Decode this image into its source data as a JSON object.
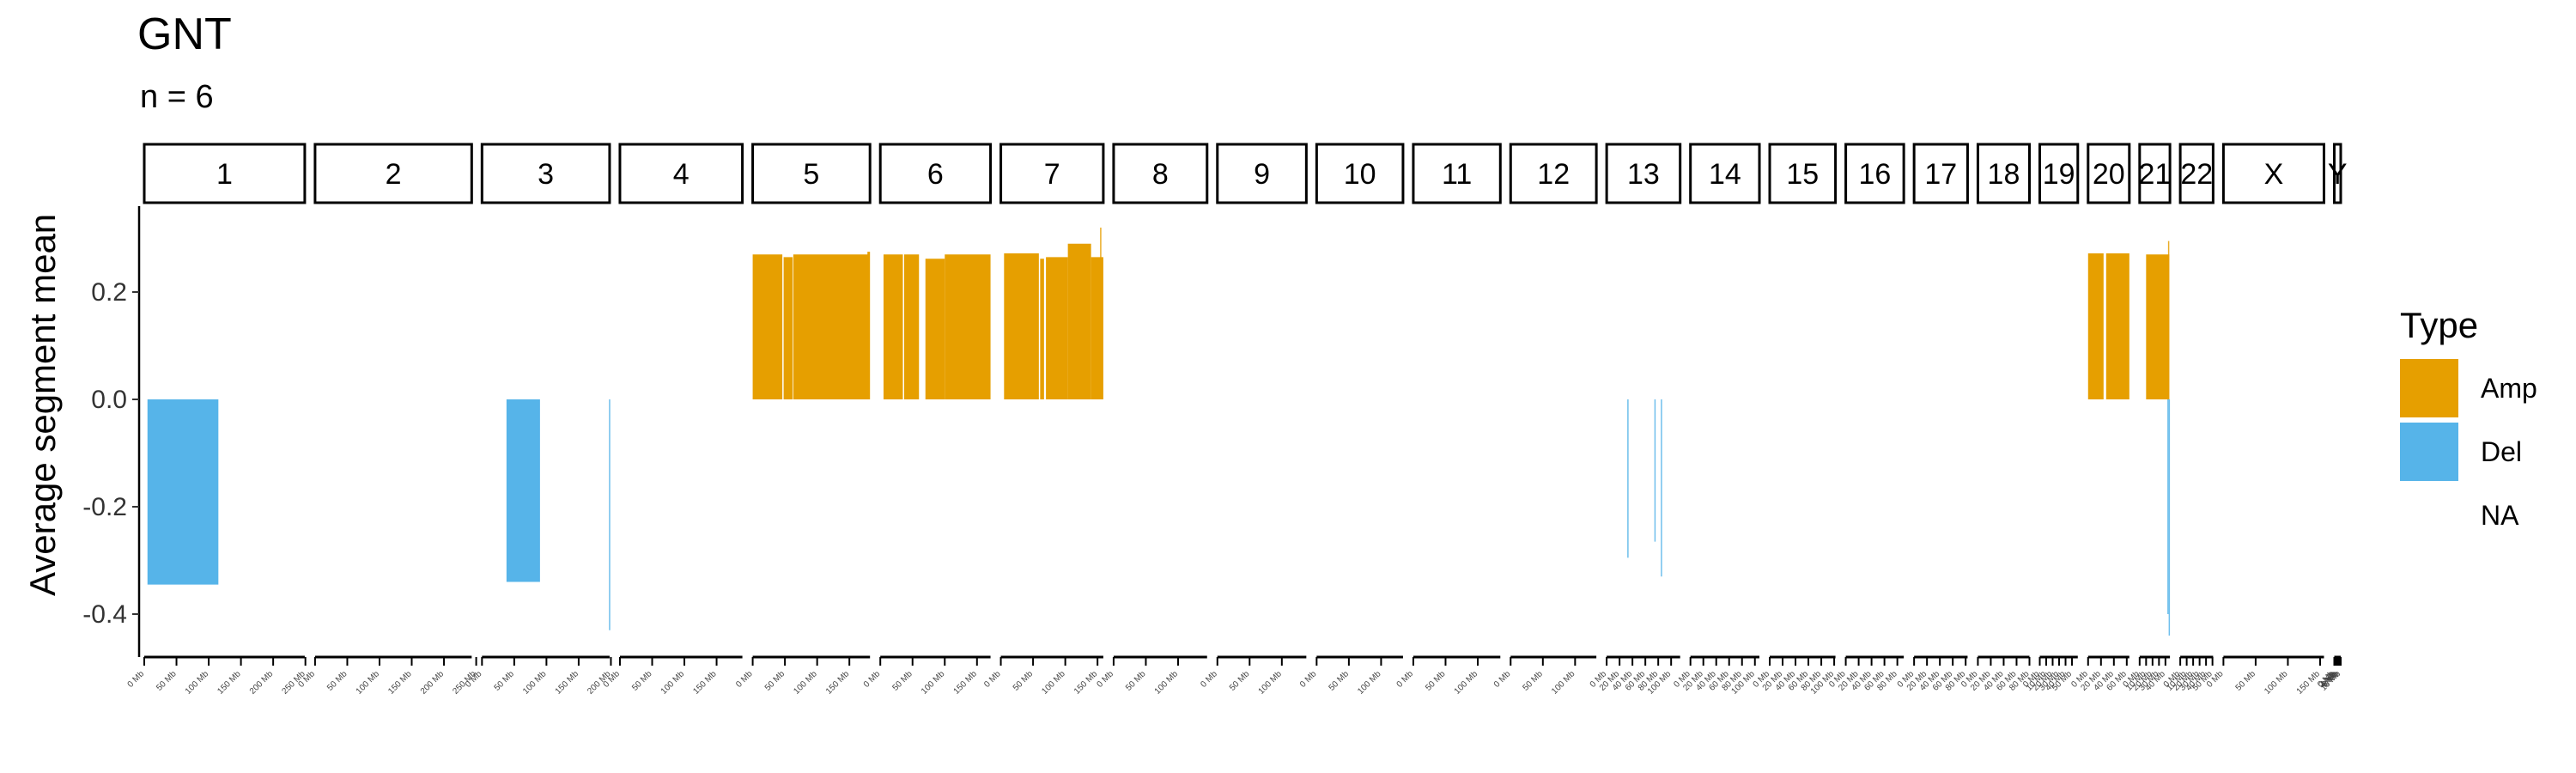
{
  "chart_data": {
    "type": "bar",
    "title": "GNT",
    "subtitle": "n = 6",
    "ylabel": "Average segment mean",
    "xlabel": "",
    "ylim": [
      -0.48,
      0.36
    ],
    "yticks": [
      0.2,
      0.0,
      -0.2,
      -0.4
    ],
    "ytick_labels": [
      "0.2",
      "0.0",
      "-0.2",
      "-0.4"
    ],
    "legend": {
      "title": "Type",
      "position": "right",
      "entries": [
        {
          "label": "Amp",
          "color": "#E69F00"
        },
        {
          "label": "Del",
          "color": "#56B4E9"
        },
        {
          "label": "NA",
          "color": "none"
        }
      ]
    },
    "chromosomes": [
      {
        "name": "1",
        "length_mb": 249,
        "ticks": [
          "0 Mb",
          "50 Mb",
          "100 Mb",
          "150 Mb",
          "200 Mb",
          "250 Mb"
        ]
      },
      {
        "name": "2",
        "length_mb": 243,
        "ticks": [
          "0 Mb",
          "50 Mb",
          "100 Mb",
          "150 Mb",
          "200 Mb",
          "250 Mb"
        ]
      },
      {
        "name": "3",
        "length_mb": 198,
        "ticks": [
          "0 Mb",
          "50 Mb",
          "100 Mb",
          "150 Mb",
          "200 Mb"
        ]
      },
      {
        "name": "4",
        "length_mb": 190,
        "ticks": [
          "0 Mb",
          "50 Mb",
          "100 Mb",
          "150 Mb"
        ]
      },
      {
        "name": "5",
        "length_mb": 182,
        "ticks": [
          "0 Mb",
          "50 Mb",
          "100 Mb",
          "150 Mb"
        ]
      },
      {
        "name": "6",
        "length_mb": 171,
        "ticks": [
          "0 Mb",
          "50 Mb",
          "100 Mb",
          "150 Mb"
        ]
      },
      {
        "name": "7",
        "length_mb": 159,
        "ticks": [
          "0 Mb",
          "50 Mb",
          "100 Mb",
          "150 Mb"
        ]
      },
      {
        "name": "8",
        "length_mb": 145,
        "ticks": [
          "0 Mb",
          "50 Mb",
          "100 Mb"
        ]
      },
      {
        "name": "9",
        "length_mb": 138,
        "ticks": [
          "0 Mb",
          "50 Mb",
          "100 Mb"
        ]
      },
      {
        "name": "10",
        "length_mb": 134,
        "ticks": [
          "0 Mb",
          "50 Mb",
          "100 Mb"
        ]
      },
      {
        "name": "11",
        "length_mb": 135,
        "ticks": [
          "0 Mb",
          "50 Mb",
          "100 Mb"
        ]
      },
      {
        "name": "12",
        "length_mb": 133,
        "ticks": [
          "0 Mb",
          "50 Mb",
          "100 Mb"
        ]
      },
      {
        "name": "13",
        "length_mb": 114,
        "ticks": [
          "0 Mb",
          "20 Mb",
          "40 Mb",
          "60 Mb",
          "80 Mb",
          "100 Mb"
        ]
      },
      {
        "name": "14",
        "length_mb": 107,
        "ticks": [
          "0 Mb",
          "20 Mb",
          "40 Mb",
          "60 Mb",
          "80 Mb",
          "100 Mb"
        ]
      },
      {
        "name": "15",
        "length_mb": 102,
        "ticks": [
          "0 Mb",
          "20 Mb",
          "40 Mb",
          "60 Mb",
          "80 Mb",
          "100 Mb"
        ]
      },
      {
        "name": "16",
        "length_mb": 90,
        "ticks": [
          "0 Mb",
          "20 Mb",
          "40 Mb",
          "60 Mb",
          "80 Mb"
        ]
      },
      {
        "name": "17",
        "length_mb": 83,
        "ticks": [
          "0 Mb",
          "20 Mb",
          "40 Mb",
          "60 Mb",
          "80 Mb"
        ]
      },
      {
        "name": "18",
        "length_mb": 80,
        "ticks": [
          "0 Mb",
          "20 Mb",
          "40 Mb",
          "60 Mb",
          "80 Mb"
        ]
      },
      {
        "name": "19",
        "length_mb": 59,
        "ticks": [
          "0 Mb",
          "10 Mb",
          "20 Mb",
          "30 Mb",
          "40 Mb",
          "50 Mb"
        ]
      },
      {
        "name": "20",
        "length_mb": 64,
        "ticks": [
          "0 Mb",
          "20 Mb",
          "40 Mb",
          "60 Mb"
        ]
      },
      {
        "name": "21",
        "length_mb": 47,
        "ticks": [
          "0 Mb",
          "10 Mb",
          "20 Mb",
          "30 Mb",
          "40 Mb"
        ]
      },
      {
        "name": "22",
        "length_mb": 51,
        "ticks": [
          "0 Mb",
          "10 Mb",
          "20 Mb",
          "30 Mb",
          "40 Mb",
          "50 Mb"
        ]
      },
      {
        "name": "X",
        "length_mb": 156,
        "ticks": [
          "0 Mb",
          "50 Mb",
          "100 Mb",
          "150 Mb"
        ]
      },
      {
        "name": "Y",
        "length_mb": 10,
        "ticks": [
          "0 Mb",
          "2 Mb",
          "4 Mb",
          "6 Mb",
          "8 Mb",
          "10 Mb"
        ]
      }
    ],
    "segments": [
      {
        "chrom": "1",
        "start_mb": 5,
        "end_mb": 115,
        "value": -0.345,
        "type": "Del"
      },
      {
        "chrom": "3",
        "start_mb": 38,
        "end_mb": 90,
        "value": -0.34,
        "type": "Del"
      },
      {
        "chrom": "3",
        "start_mb": 197,
        "end_mb": 198,
        "value": -0.43,
        "type": "Del"
      },
      {
        "chrom": "5",
        "start_mb": 0,
        "end_mb": 46,
        "value": 0.27,
        "type": "Amp"
      },
      {
        "chrom": "5",
        "start_mb": 48,
        "end_mb": 62,
        "value": 0.265,
        "type": "Amp"
      },
      {
        "chrom": "5",
        "start_mb": 63,
        "end_mb": 181,
        "value": 0.27,
        "type": "Amp"
      },
      {
        "chrom": "5",
        "start_mb": 178,
        "end_mb": 182,
        "value": 0.275,
        "type": "Amp"
      },
      {
        "chrom": "6",
        "start_mb": 5,
        "end_mb": 35,
        "value": 0.27,
        "type": "Amp"
      },
      {
        "chrom": "6",
        "start_mb": 37,
        "end_mb": 60,
        "value": 0.27,
        "type": "Amp"
      },
      {
        "chrom": "6",
        "start_mb": 70,
        "end_mb": 100,
        "value": 0.262,
        "type": "Amp"
      },
      {
        "chrom": "6",
        "start_mb": 100,
        "end_mb": 171,
        "value": 0.27,
        "type": "Amp"
      },
      {
        "chrom": "7",
        "start_mb": 5,
        "end_mb": 59,
        "value": 0.272,
        "type": "Amp"
      },
      {
        "chrom": "7",
        "start_mb": 61,
        "end_mb": 67,
        "value": 0.262,
        "type": "Amp"
      },
      {
        "chrom": "7",
        "start_mb": 70,
        "end_mb": 104,
        "value": 0.265,
        "type": "Amp"
      },
      {
        "chrom": "7",
        "start_mb": 104,
        "end_mb": 140,
        "value": 0.29,
        "type": "Amp"
      },
      {
        "chrom": "7",
        "start_mb": 140,
        "end_mb": 159,
        "value": 0.265,
        "type": "Amp"
      },
      {
        "chrom": "7",
        "start_mb": 154,
        "end_mb": 156,
        "value": 0.32,
        "type": "Amp"
      },
      {
        "chrom": "13",
        "start_mb": 32,
        "end_mb": 34,
        "value": -0.295,
        "type": "Del"
      },
      {
        "chrom": "13",
        "start_mb": 74,
        "end_mb": 75,
        "value": -0.265,
        "type": "Del"
      },
      {
        "chrom": "13",
        "start_mb": 84,
        "end_mb": 85,
        "value": -0.33,
        "type": "Del"
      },
      {
        "chrom": "20",
        "start_mb": 0,
        "end_mb": 24,
        "value": 0.272,
        "type": "Amp"
      },
      {
        "chrom": "20",
        "start_mb": 28,
        "end_mb": 64,
        "value": 0.272,
        "type": "Amp"
      },
      {
        "chrom": "21",
        "start_mb": 10,
        "end_mb": 46,
        "value": 0.27,
        "type": "Amp"
      },
      {
        "chrom": "21",
        "start_mb": 44,
        "end_mb": 46,
        "value": 0.295,
        "type": "Amp"
      },
      {
        "chrom": "21",
        "start_mb": 43,
        "end_mb": 44.5,
        "value": -0.4,
        "type": "Del"
      },
      {
        "chrom": "21",
        "start_mb": 45,
        "end_mb": 46,
        "value": -0.44,
        "type": "Del"
      }
    ]
  }
}
